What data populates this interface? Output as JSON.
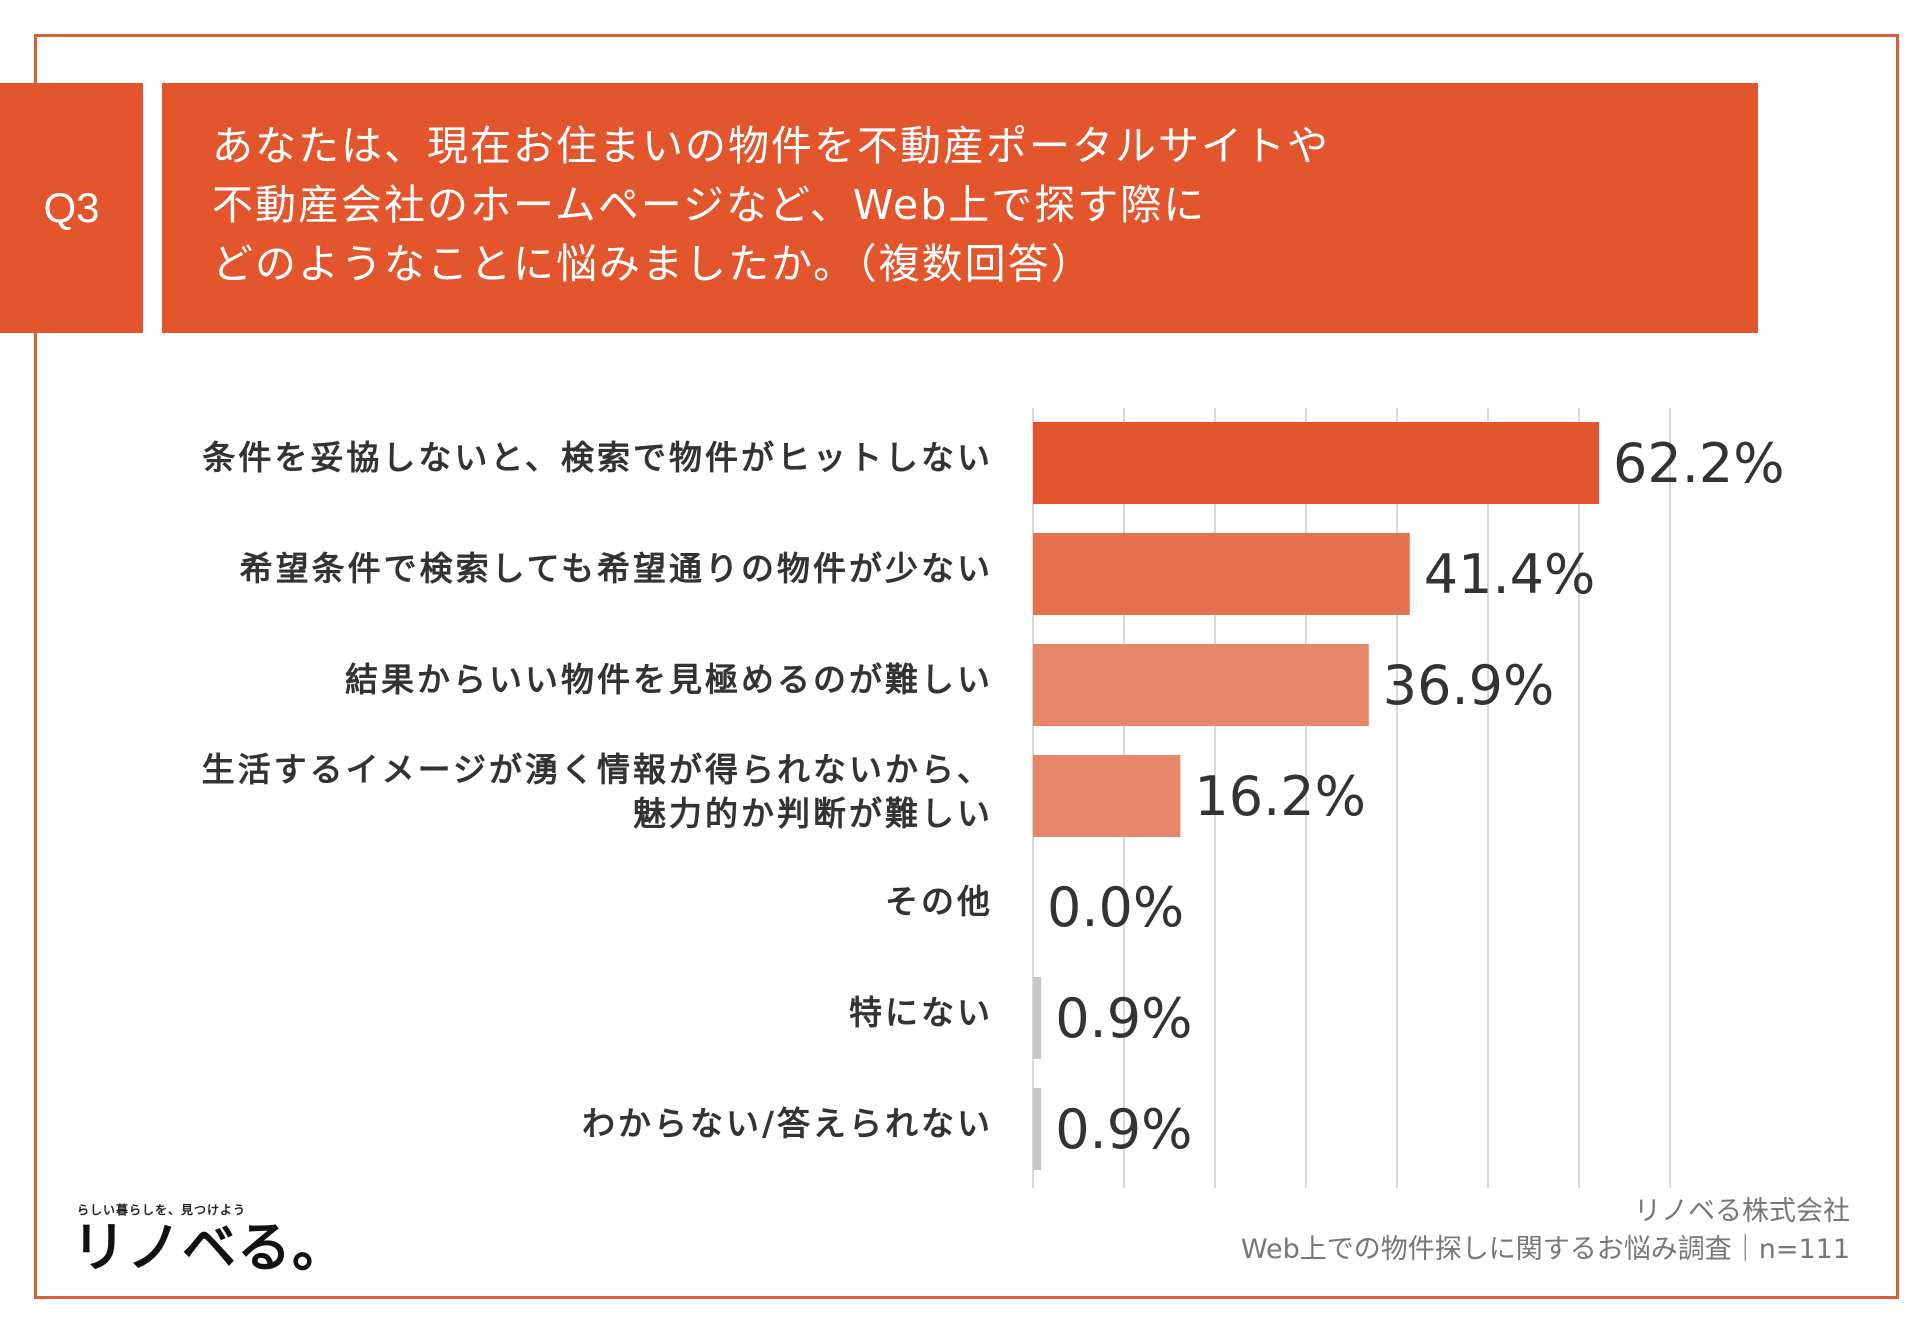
{
  "question": {
    "label": "Q3",
    "lines": [
      "あなたは、現在お住まいの物件を不動産ポータルサイトや",
      "不動産会社のホームページなど、Web上で探す際に",
      "どのようなことに悩みましたか。（複数回答）"
    ]
  },
  "chart_data": {
    "type": "bar",
    "orientation": "horizontal",
    "categories": [
      "条件を妥協しないと、検索で物件がヒットしない",
      "希望条件で検索しても希望通りの物件が少ない",
      "結果からいい物件を見極めるのが難しい",
      [
        "生活するイメージが湧く情報が得られないから、",
        "魅力的か判断が難しい"
      ],
      "その他",
      "特にない",
      "わからない/答えられない"
    ],
    "values": [
      62.2,
      41.4,
      36.9,
      16.2,
      0.0,
      0.9,
      0.9
    ],
    "value_labels": [
      "62.2%",
      "41.4%",
      "36.9%",
      "16.2%",
      "0.0%",
      "0.9%",
      "0.9%"
    ],
    "bar_colors": [
      "#e2552d",
      "#e5704c",
      "#e8866a",
      "#e8866a",
      "#e8866a",
      "#c8c8c8",
      "#c8c8c8"
    ],
    "xlim": [
      0,
      70
    ],
    "grid": true,
    "unit": "%"
  },
  "footer": {
    "logo_tagline": "らしい暮らしを、見つけよう",
    "logo": "リノベる。",
    "company": "リノベる株式会社",
    "survey": "Web上での物件探しに関するお悩み調査｜n=111"
  }
}
